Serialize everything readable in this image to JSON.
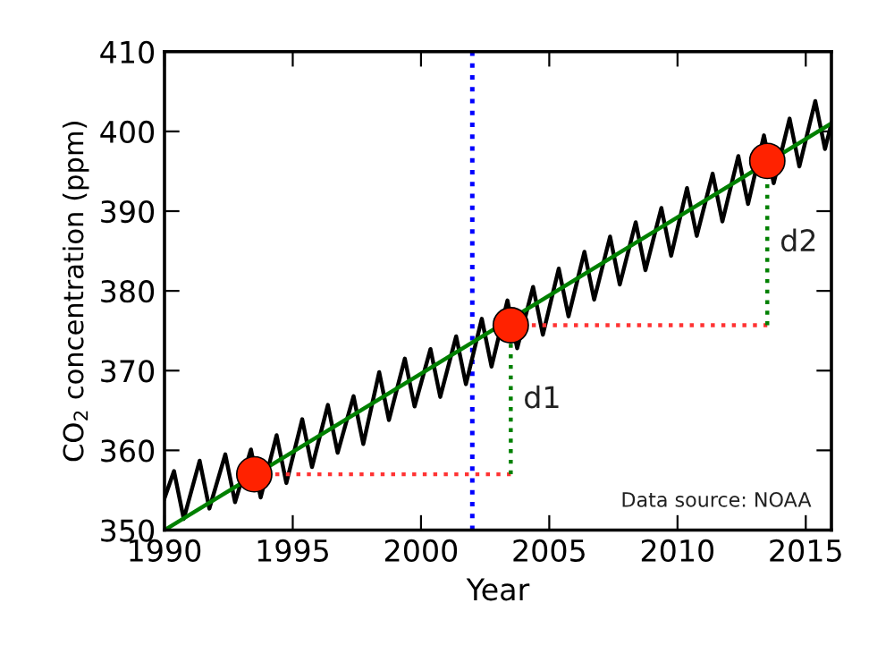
{
  "chart_data": {
    "type": "line",
    "xlabel": "Year",
    "ylabel": "CO$_{2}$ concentration (ppm)",
    "xlim": [
      1990,
      2016
    ],
    "xticks": [
      1990,
      1995,
      2000,
      2005,
      2010,
      2015
    ],
    "ylim": [
      350,
      410
    ],
    "yticks": [
      350,
      360,
      370,
      380,
      390,
      400,
      410
    ],
    "grid": false,
    "legend": false,
    "series": [
      {
        "color": "#000000",
        "line_style": "solid",
        "x": [
          1990.0,
          1990.37,
          1990.75,
          1991.37,
          1991.75,
          1992.37,
          1992.75,
          1993.37,
          1993.75,
          1994.37,
          1994.75,
          1995.37,
          1995.75,
          1996.37,
          1996.75,
          1997.37,
          1997.75,
          1998.37,
          1998.75,
          1999.37,
          1999.75,
          2000.37,
          2000.75,
          2001.37,
          2001.75,
          2002.37,
          2002.75,
          2003.37,
          2003.75,
          2004.37,
          2004.75,
          2005.37,
          2005.75,
          2006.37,
          2006.75,
          2007.37,
          2007.75,
          2008.37,
          2008.75,
          2009.37,
          2009.75,
          2010.37,
          2010.75,
          2011.37,
          2011.75,
          2012.37,
          2012.75,
          2013.37,
          2013.75,
          2014.37,
          2014.75,
          2015.37,
          2015.75,
          2016.0
        ],
        "values": [
          354.0,
          357.4,
          351.4,
          358.7,
          352.7,
          359.5,
          353.5,
          360.1,
          354.1,
          361.9,
          355.9,
          363.9,
          357.9,
          365.7,
          359.7,
          366.8,
          360.8,
          369.8,
          363.8,
          371.5,
          365.5,
          372.7,
          366.7,
          374.3,
          368.3,
          376.5,
          370.5,
          378.8,
          372.8,
          380.5,
          374.5,
          382.8,
          376.8,
          384.9,
          378.9,
          386.8,
          380.8,
          388.6,
          382.6,
          390.4,
          384.4,
          392.9,
          386.9,
          394.7,
          388.7,
          396.9,
          390.9,
          399.5,
          393.5,
          401.6,
          395.6,
          403.8,
          397.8,
          401.0
        ]
      },
      {
        "type": "line",
        "color": "#008000",
        "line_style": "solid",
        "x": [
          1990,
          2016
        ],
        "values": [
          350,
          401
        ]
      },
      {
        "type": "line",
        "color": "#ff3333",
        "line_style": "dotted",
        "x": [
          1993.5,
          2003.5
        ],
        "values": [
          357,
          357
        ]
      },
      {
        "type": "line",
        "color": "#008000",
        "line_style": "dotted",
        "x": [
          2003.5,
          2003.5
        ],
        "values": [
          357,
          375.7
        ]
      },
      {
        "type": "line",
        "color": "#ff3333",
        "line_style": "dotted",
        "x": [
          2003.5,
          2013.5
        ],
        "values": [
          375.7,
          375.7
        ]
      },
      {
        "type": "line",
        "color": "#008000",
        "line_style": "dotted",
        "x": [
          2013.5,
          2013.5
        ],
        "values": [
          375.7,
          396.3
        ]
      },
      {
        "type": "scatter",
        "color": "#ff2200",
        "marker": "circle",
        "x": [
          1993.5,
          2003.5,
          2013.5
        ],
        "values": [
          357,
          375.7,
          396.3
        ]
      }
    ],
    "ref_lines": [
      {
        "axis": "x",
        "value": 2002,
        "color": "#0000ff",
        "line_style": "dotted"
      }
    ],
    "annotations": [
      "d1",
      "d2",
      "Data source: NOAA"
    ]
  }
}
